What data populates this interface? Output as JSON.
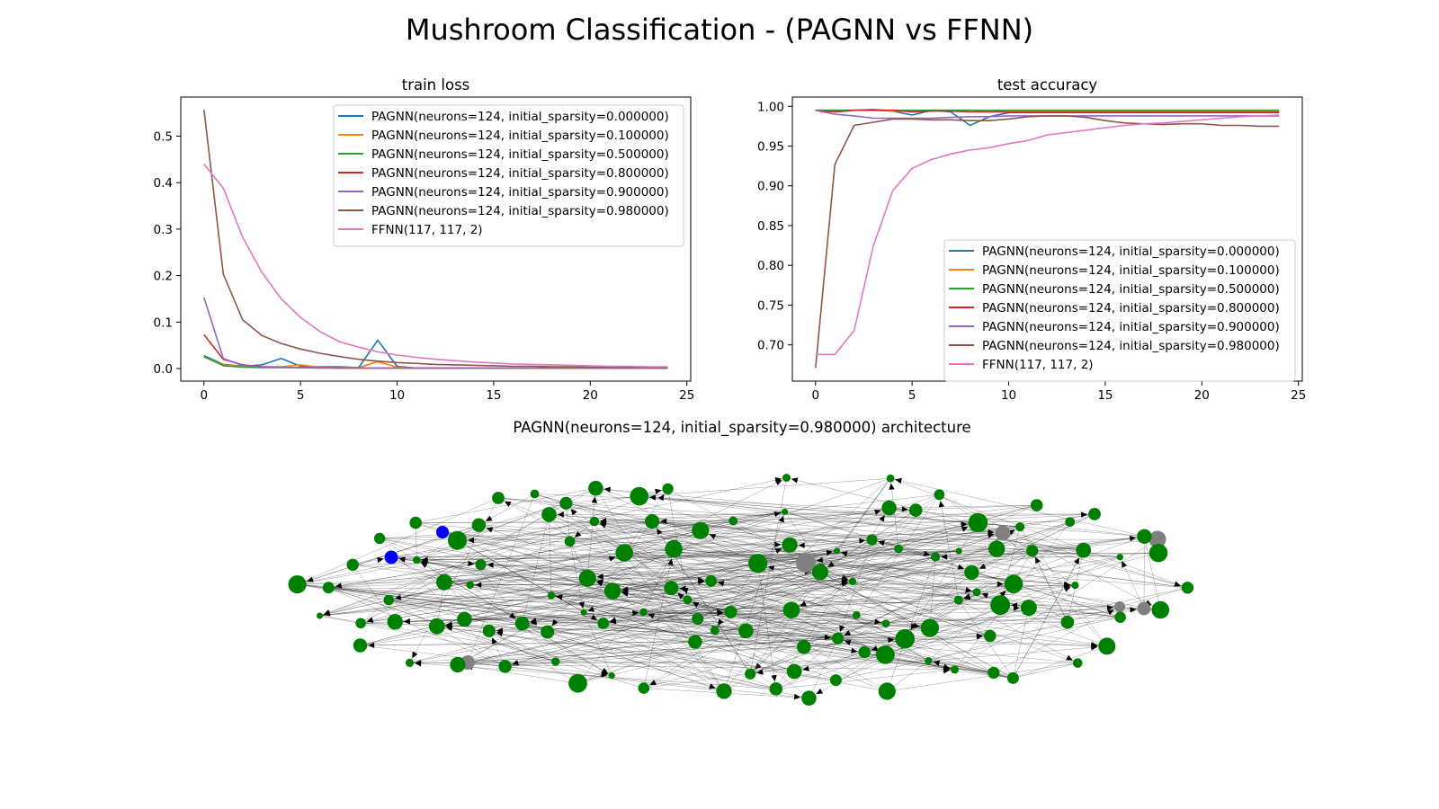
{
  "figure": {
    "suptitle": "Mushroom Classification - (PAGNN vs FFNN)",
    "graph_title": "PAGNN(neurons=124, initial_sparsity=0.980000) architecture"
  },
  "chart_data": [
    {
      "type": "line",
      "title": "train loss",
      "xlabel": "",
      "ylabel": "",
      "xlim": [
        -1.2,
        25.2
      ],
      "ylim": [
        -0.027,
        0.584
      ],
      "xticks": [
        0,
        5,
        10,
        15,
        20,
        25
      ],
      "yticks": [
        0.0,
        0.1,
        0.2,
        0.3,
        0.4,
        0.5
      ],
      "xtick_labels": [
        "0",
        "5",
        "10",
        "15",
        "20",
        "25"
      ],
      "ytick_labels": [
        "0.0",
        "0.1",
        "0.2",
        "0.3",
        "0.4",
        "0.5"
      ],
      "grid": false,
      "legend_position": "upper-right",
      "x": [
        0,
        1,
        2,
        3,
        4,
        5,
        6,
        7,
        8,
        9,
        10,
        11,
        12,
        13,
        14,
        15,
        16,
        17,
        18,
        19,
        20,
        21,
        22,
        23,
        24
      ],
      "series": [
        {
          "name": "PAGNN(neurons=124, initial_sparsity=0.000000)",
          "color": "#1f77b4",
          "values": [
            0.028,
            0.009,
            0.005,
            0.008,
            0.022,
            0.005,
            0.004,
            0.004,
            0.002,
            0.061,
            0.005,
            0.001,
            0.001,
            0.001,
            0.001,
            0.001,
            0.001,
            0.001,
            0.001,
            0.001,
            0.001,
            0.001,
            0.001,
            0.001,
            0.001
          ]
        },
        {
          "name": "PAGNN(neurons=124, initial_sparsity=0.100000)",
          "color": "#ff7f0e",
          "values": [
            0.025,
            0.008,
            0.004,
            0.004,
            0.004,
            0.008,
            0.003,
            0.002,
            0.002,
            0.015,
            0.003,
            0.001,
            0.001,
            0.001,
            0.001,
            0.001,
            0.001,
            0.001,
            0.001,
            0.001,
            0.001,
            0.001,
            0.001,
            0.001,
            0.001
          ]
        },
        {
          "name": "PAGNN(neurons=124, initial_sparsity=0.500000)",
          "color": "#2ca02c",
          "values": [
            0.026,
            0.006,
            0.003,
            0.002,
            0.002,
            0.002,
            0.001,
            0.001,
            0.001,
            0.001,
            0.001,
            0.001,
            0.001,
            0.001,
            0.001,
            0.001,
            0.001,
            0.001,
            0.001,
            0.001,
            0.001,
            0.001,
            0.001,
            0.001,
            0.001
          ]
        },
        {
          "name": "PAGNN(neurons=124, initial_sparsity=0.800000)",
          "color": "#d62728",
          "values": [
            0.073,
            0.02,
            0.008,
            0.004,
            0.003,
            0.002,
            0.002,
            0.001,
            0.001,
            0.001,
            0.001,
            0.001,
            0.001,
            0.001,
            0.001,
            0.001,
            0.001,
            0.001,
            0.001,
            0.001,
            0.001,
            0.001,
            0.001,
            0.001,
            0.001
          ]
        },
        {
          "name": "PAGNN(neurons=124, initial_sparsity=0.900000)",
          "color": "#9467bd",
          "values": [
            0.153,
            0.022,
            0.006,
            0.004,
            0.003,
            0.002,
            0.002,
            0.002,
            0.001,
            0.001,
            0.001,
            0.001,
            0.001,
            0.001,
            0.001,
            0.001,
            0.001,
            0.001,
            0.001,
            0.001,
            0.001,
            0.001,
            0.001,
            0.001,
            0.001
          ]
        },
        {
          "name": "PAGNN(neurons=124, initial_sparsity=0.980000)",
          "color": "#8c564b",
          "values": [
            0.557,
            0.203,
            0.105,
            0.071,
            0.054,
            0.042,
            0.033,
            0.026,
            0.02,
            0.016,
            0.013,
            0.011,
            0.009,
            0.008,
            0.007,
            0.006,
            0.005,
            0.005,
            0.004,
            0.004,
            0.003,
            0.003,
            0.003,
            0.003,
            0.002
          ]
        },
        {
          "name": "FFNN(117, 117, 2)",
          "color": "#e377c2",
          "values": [
            0.44,
            0.388,
            0.283,
            0.207,
            0.15,
            0.11,
            0.08,
            0.058,
            0.046,
            0.036,
            0.029,
            0.024,
            0.02,
            0.017,
            0.014,
            0.012,
            0.01,
            0.009,
            0.008,
            0.007,
            0.006,
            0.005,
            0.005,
            0.004,
            0.004
          ]
        }
      ]
    },
    {
      "type": "line",
      "title": "test accuracy",
      "xlabel": "",
      "ylabel": "",
      "xlim": [
        -1.2,
        25.2
      ],
      "ylim": [
        0.6544,
        1.0116
      ],
      "xticks": [
        0,
        5,
        10,
        15,
        20,
        25
      ],
      "yticks": [
        0.7,
        0.75,
        0.8,
        0.85,
        0.9,
        0.95,
        1.0
      ],
      "xtick_labels": [
        "0",
        "5",
        "10",
        "15",
        "20",
        "25"
      ],
      "ytick_labels": [
        "0.70",
        "0.75",
        "0.80",
        "0.85",
        "0.90",
        "0.95",
        "1.00"
      ],
      "grid": false,
      "legend_position": "lower-right",
      "x": [
        0,
        1,
        2,
        3,
        4,
        5,
        6,
        7,
        8,
        9,
        10,
        11,
        12,
        13,
        14,
        15,
        16,
        17,
        18,
        19,
        20,
        21,
        22,
        23,
        24
      ],
      "series": [
        {
          "name": "PAGNN(neurons=124, initial_sparsity=0.000000)",
          "color": "#1f77b4",
          "values": [
            0.995,
            0.993,
            0.995,
            0.996,
            0.994,
            0.989,
            0.995,
            0.993,
            0.976,
            0.987,
            0.992,
            0.992,
            0.992,
            0.992,
            0.992,
            0.992,
            0.992,
            0.992,
            0.992,
            0.992,
            0.992,
            0.992,
            0.992,
            0.992,
            0.992
          ]
        },
        {
          "name": "PAGNN(neurons=124, initial_sparsity=0.100000)",
          "color": "#ff7f0e",
          "values": [
            0.995,
            0.995,
            0.995,
            0.995,
            0.994,
            0.994,
            0.995,
            0.995,
            0.995,
            0.993,
            0.995,
            0.995,
            0.995,
            0.995,
            0.995,
            0.995,
            0.995,
            0.995,
            0.995,
            0.995,
            0.995,
            0.995,
            0.995,
            0.995,
            0.995
          ]
        },
        {
          "name": "PAGNN(neurons=124, initial_sparsity=0.500000)",
          "color": "#2ca02c",
          "values": [
            0.995,
            0.995,
            0.995,
            0.995,
            0.995,
            0.995,
            0.995,
            0.995,
            0.995,
            0.995,
            0.995,
            0.995,
            0.995,
            0.995,
            0.995,
            0.995,
            0.995,
            0.995,
            0.995,
            0.995,
            0.995,
            0.995,
            0.995,
            0.995,
            0.995
          ]
        },
        {
          "name": "PAGNN(neurons=124, initial_sparsity=0.800000)",
          "color": "#d62728",
          "values": [
            0.995,
            0.993,
            0.995,
            0.995,
            0.995,
            0.993,
            0.994,
            0.994,
            0.993,
            0.993,
            0.993,
            0.993,
            0.993,
            0.993,
            0.993,
            0.993,
            0.993,
            0.993,
            0.993,
            0.993,
            0.993,
            0.993,
            0.993,
            0.993,
            0.993
          ]
        },
        {
          "name": "PAGNN(neurons=124, initial_sparsity=0.900000)",
          "color": "#9467bd",
          "values": [
            0.995,
            0.99,
            0.988,
            0.985,
            0.985,
            0.985,
            0.985,
            0.986,
            0.987,
            0.987,
            0.988,
            0.988,
            0.988,
            0.988,
            0.988,
            0.988,
            0.988,
            0.988,
            0.988,
            0.988,
            0.988,
            0.988,
            0.988,
            0.988,
            0.988
          ]
        },
        {
          "name": "PAGNN(neurons=124, initial_sparsity=0.980000)",
          "color": "#8c564b",
          "values": [
            0.671,
            0.927,
            0.976,
            0.98,
            0.984,
            0.984,
            0.983,
            0.983,
            0.982,
            0.982,
            0.984,
            0.987,
            0.988,
            0.988,
            0.986,
            0.982,
            0.979,
            0.978,
            0.977,
            0.978,
            0.978,
            0.976,
            0.976,
            0.975,
            0.975
          ]
        },
        {
          "name": "FFNN(117, 117, 2)",
          "color": "#e377c2",
          "values": [
            0.688,
            0.688,
            0.718,
            0.825,
            0.894,
            0.922,
            0.933,
            0.94,
            0.945,
            0.948,
            0.953,
            0.957,
            0.964,
            0.967,
            0.97,
            0.973,
            0.976,
            0.978,
            0.979,
            0.981,
            0.983,
            0.985,
            0.987,
            0.988,
            0.989
          ]
        }
      ]
    },
    {
      "type": "network_graph",
      "title": "PAGNN(neurons=124, initial_sparsity=0.980000) architecture",
      "node_count": 124,
      "node_colors": {
        "input": "#0000ff",
        "output": "#808080",
        "hidden": "#008000"
      },
      "input_count": 2,
      "output_count": 6,
      "directed": true,
      "edge_color": "#000000"
    }
  ]
}
